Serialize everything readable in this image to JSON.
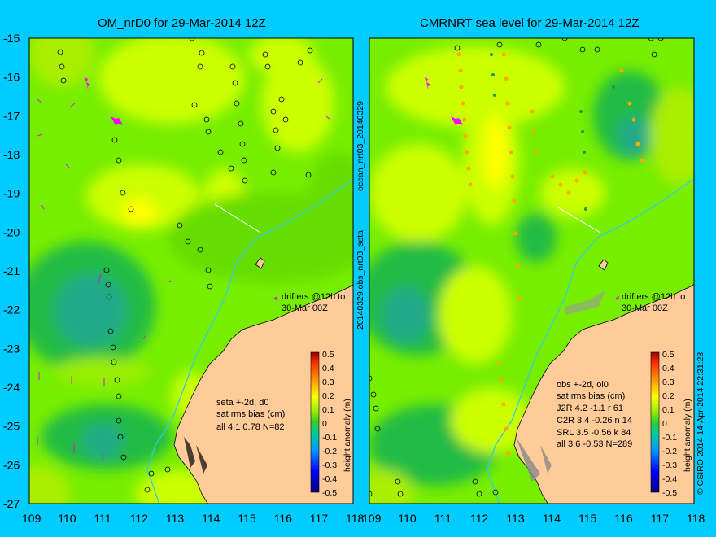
{
  "panels": [
    {
      "title": "OM_nrD0 for 29-Mar-2014 12Z",
      "drifters": [
        "drifters @12h to",
        "30-Mar 00Z"
      ],
      "stats": [
        "seta +-2d, d0",
        "sat rms bias (cm)",
        "all 4.1 0.78 N=82"
      ],
      "side_label": "ocean_nrt03_20140329",
      "side_label2": "20140329.obs_nrt03_seta"
    },
    {
      "title": "CMRNRT sea level  for 29-Mar-2014 12Z",
      "drifters": [
        "drifters @12h to",
        "30-Mar 00Z"
      ],
      "stats": [
        "obs +-2d, oi0",
        "sat rms bias (cm)",
        "J2R   4.2  -1.1  r 61",
        "C2R   3.4  -0.26  n 14",
        "SRL    3.5  -0.56 k 84",
        "all    3.6  -0.53  N=289"
      ],
      "side_label": "© CSIRO 2014  14-Apr-2014 22:31:28"
    }
  ],
  "lon_ticks": [
    "109",
    "110",
    "111",
    "112",
    "113",
    "114",
    "115",
    "116",
    "117",
    "118"
  ],
  "lat_ticks": [
    "-15",
    "-16",
    "-17",
    "-18",
    "-19",
    "-20",
    "-21",
    "-22",
    "-23",
    "-24",
    "-25",
    "-26",
    "-27"
  ],
  "colorbar": {
    "label": "height anomaly (m)",
    "ticks": [
      "0.5",
      "0.4",
      "0.3",
      "0.2",
      "0.1",
      "0",
      "-0.1",
      "-0.2",
      "-0.3",
      "-0.4",
      "-0.5"
    ]
  },
  "colors": {
    "background": "#00ccff",
    "land": "#ffcc99",
    "field_high": "#ffff00",
    "field_mid": "#ccff00",
    "field_zero": "#66ee00",
    "field_low": "#22bb44",
    "field_lower": "#22aa88",
    "drifter": "#ff00ff"
  }
}
